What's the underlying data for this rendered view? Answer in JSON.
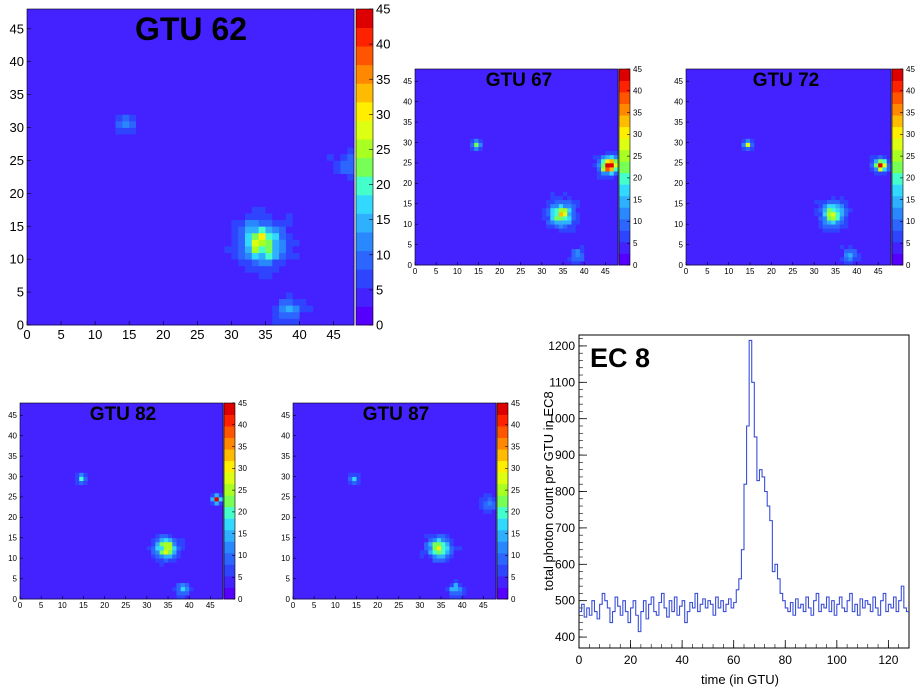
{
  "colors": {
    "palette": [
      "#ffffff",
      "#5500ff",
      "#4422ff",
      "#2f44ff",
      "#2d66ff",
      "#2a88ff",
      "#2fb0ff",
      "#33d8ff",
      "#44ffcc",
      "#77ff55",
      "#aaff22",
      "#ddff11",
      "#ffee00",
      "#ffbb00",
      "#ff8800",
      "#ff5500",
      "#ff2200",
      "#dd0000"
    ],
    "line": "#3a4fd8"
  },
  "chart_data": [
    {
      "type": "heatmap",
      "title": "GTU 62",
      "grid": [
        48,
        48
      ],
      "xlim": [
        0,
        48
      ],
      "ylim": [
        0,
        48
      ],
      "xticks": [
        "0",
        "5",
        "10",
        "15",
        "20",
        "25",
        "30",
        "35",
        "40",
        "45"
      ],
      "yticks": [
        "0",
        "5",
        "10",
        "15",
        "20",
        "25",
        "30",
        "35",
        "40",
        "45"
      ],
      "zrange": [
        0,
        45
      ],
      "zticks": [
        "0",
        "5",
        "10",
        "15",
        "20",
        "25",
        "30",
        "35",
        "40",
        "45"
      ],
      "background_level": 3,
      "hotspots": [
        {
          "x": 34.5,
          "y": 12.5,
          "sigma": 2.0,
          "amp": 24
        },
        {
          "x": 38.5,
          "y": 2.5,
          "sigma": 1.2,
          "amp": 9
        },
        {
          "x": 14.5,
          "y": 30.5,
          "sigma": 0.9,
          "amp": 9
        },
        {
          "x": 47.0,
          "y": 24.5,
          "sigma": 1.0,
          "amp": 8
        }
      ]
    },
    {
      "type": "heatmap",
      "title": "GTU 67",
      "grid": [
        48,
        48
      ],
      "xlim": [
        0,
        48
      ],
      "ylim": [
        0,
        48
      ],
      "xticks": [
        "0",
        "5",
        "10",
        "15",
        "20",
        "25",
        "30",
        "35",
        "40",
        "45"
      ],
      "yticks": [
        "0",
        "5",
        "10",
        "15",
        "20",
        "25",
        "30",
        "35",
        "40",
        "45"
      ],
      "zrange": [
        0,
        45
      ],
      "zticks": [
        "0",
        "5",
        "10",
        "15",
        "20",
        "25",
        "30",
        "35",
        "40",
        "45"
      ],
      "background_level": 3,
      "hotspots": [
        {
          "x": 34.5,
          "y": 12.5,
          "sigma": 1.8,
          "amp": 24
        },
        {
          "x": 38.5,
          "y": 2.5,
          "sigma": 1.0,
          "amp": 11
        },
        {
          "x": 14.5,
          "y": 29.5,
          "sigma": 0.7,
          "amp": 22
        },
        {
          "x": 46.0,
          "y": 24.5,
          "sigma": 1.3,
          "amp": 42
        }
      ]
    },
    {
      "type": "heatmap",
      "title": "GTU 72",
      "grid": [
        48,
        48
      ],
      "xlim": [
        0,
        48
      ],
      "ylim": [
        0,
        48
      ],
      "xticks": [
        "0",
        "5",
        "10",
        "15",
        "20",
        "25",
        "30",
        "35",
        "40",
        "45"
      ],
      "yticks": [
        "0",
        "5",
        "10",
        "15",
        "20",
        "25",
        "30",
        "35",
        "40",
        "45"
      ],
      "zrange": [
        0,
        45
      ],
      "zticks": [
        "0",
        "5",
        "10",
        "15",
        "20",
        "25",
        "30",
        "35",
        "40",
        "45"
      ],
      "background_level": 3,
      "hotspots": [
        {
          "x": 34.5,
          "y": 12.5,
          "sigma": 1.8,
          "amp": 22
        },
        {
          "x": 38.5,
          "y": 2.5,
          "sigma": 1.0,
          "amp": 11
        },
        {
          "x": 14.5,
          "y": 29.5,
          "sigma": 0.7,
          "amp": 18
        },
        {
          "x": 45.5,
          "y": 24.5,
          "sigma": 1.0,
          "amp": 36
        }
      ]
    },
    {
      "type": "heatmap",
      "title": "GTU 82",
      "grid": [
        48,
        48
      ],
      "xlim": [
        0,
        48
      ],
      "ylim": [
        0,
        48
      ],
      "xticks": [
        "0",
        "5",
        "10",
        "15",
        "20",
        "25",
        "30",
        "35",
        "40",
        "45"
      ],
      "yticks": [
        "0",
        "5",
        "10",
        "15",
        "20",
        "25",
        "30",
        "35",
        "40",
        "45"
      ],
      "zrange": [
        0,
        45
      ],
      "zticks": [
        "0",
        "5",
        "10",
        "15",
        "20",
        "25",
        "30",
        "35",
        "40",
        "45"
      ],
      "background_level": 3,
      "hotspots": [
        {
          "x": 34.5,
          "y": 12.5,
          "sigma": 1.6,
          "amp": 24
        },
        {
          "x": 38.5,
          "y": 2.5,
          "sigma": 1.0,
          "amp": 11
        },
        {
          "x": 14.5,
          "y": 29.5,
          "sigma": 0.7,
          "amp": 14
        },
        {
          "x": 46.5,
          "y": 24.5,
          "sigma": 0.6,
          "amp": 40
        }
      ]
    },
    {
      "type": "heatmap",
      "title": "GTU 87",
      "grid": [
        48,
        48
      ],
      "xlim": [
        0,
        48
      ],
      "ylim": [
        0,
        48
      ],
      "xticks": [
        "0",
        "5",
        "10",
        "15",
        "20",
        "25",
        "30",
        "35",
        "40",
        "45"
      ],
      "yticks": [
        "0",
        "5",
        "10",
        "15",
        "20",
        "25",
        "30",
        "35",
        "40",
        "45"
      ],
      "zrange": [
        0,
        45
      ],
      "zticks": [
        "0",
        "5",
        "10",
        "15",
        "20",
        "25",
        "30",
        "35",
        "40",
        "45"
      ],
      "background_level": 3,
      "hotspots": [
        {
          "x": 34.5,
          "y": 12.5,
          "sigma": 1.6,
          "amp": 23
        },
        {
          "x": 38.5,
          "y": 2.5,
          "sigma": 1.0,
          "amp": 12
        },
        {
          "x": 14.5,
          "y": 29.5,
          "sigma": 0.7,
          "amp": 12
        },
        {
          "x": 46.5,
          "y": 23.5,
          "sigma": 1.0,
          "amp": 10
        }
      ]
    },
    {
      "type": "line",
      "title": "EC 8",
      "xlabel": "time (in GTU)",
      "ylabel": "total photon count per GTU in EC8",
      "xlim": [
        0,
        128
      ],
      "ylim": [
        370,
        1230
      ],
      "xticks": [
        "0",
        "20",
        "40",
        "60",
        "80",
        "100",
        "120"
      ],
      "yticks": [
        "400",
        "500",
        "600",
        "700",
        "800",
        "900",
        "1000",
        "1100",
        "1200"
      ],
      "x": [
        0,
        1,
        2,
        3,
        4,
        5,
        6,
        7,
        8,
        9,
        10,
        11,
        12,
        13,
        14,
        15,
        16,
        17,
        18,
        19,
        20,
        21,
        22,
        23,
        24,
        25,
        26,
        27,
        28,
        29,
        30,
        31,
        32,
        33,
        34,
        35,
        36,
        37,
        38,
        39,
        40,
        41,
        42,
        43,
        44,
        45,
        46,
        47,
        48,
        49,
        50,
        51,
        52,
        53,
        54,
        55,
        56,
        57,
        58,
        59,
        60,
        61,
        62,
        63,
        64,
        65,
        66,
        67,
        68,
        69,
        70,
        71,
        72,
        73,
        74,
        75,
        76,
        77,
        78,
        79,
        80,
        81,
        82,
        83,
        84,
        85,
        86,
        87,
        88,
        89,
        90,
        91,
        92,
        93,
        94,
        95,
        96,
        97,
        98,
        99,
        100,
        101,
        102,
        103,
        104,
        105,
        106,
        107,
        108,
        109,
        110,
        111,
        112,
        113,
        114,
        115,
        116,
        117,
        118,
        119,
        120,
        121,
        122,
        123,
        124,
        125,
        126,
        127
      ],
      "y": [
        470,
        490,
        455,
        480,
        460,
        500,
        470,
        450,
        490,
        520,
        500,
        480,
        440,
        470,
        510,
        485,
        460,
        500,
        470,
        440,
        480,
        500,
        460,
        415,
        470,
        500,
        450,
        490,
        510,
        470,
        460,
        495,
        520,
        480,
        455,
        500,
        470,
        510,
        460,
        485,
        500,
        440,
        470,
        495,
        480,
        520,
        470,
        490,
        505,
        480,
        500,
        490,
        460,
        510,
        480,
        500,
        470,
        490,
        505,
        480,
        495,
        530,
        560,
        640,
        820,
        980,
        1215,
        1100,
        950,
        830,
        860,
        840,
        800,
        760,
        720,
        580,
        600,
        560,
        520,
        500,
        480,
        470,
        495,
        460,
        505,
        480,
        490,
        470,
        510,
        480,
        460,
        500,
        520,
        470,
        490,
        480,
        510,
        470,
        500,
        460,
        490,
        510,
        480,
        470,
        500,
        520,
        470,
        490,
        460,
        505,
        480,
        500,
        490,
        470,
        510,
        480,
        460,
        500,
        520,
        470,
        490,
        480,
        510,
        470,
        500,
        540,
        480,
        470
      ]
    }
  ]
}
